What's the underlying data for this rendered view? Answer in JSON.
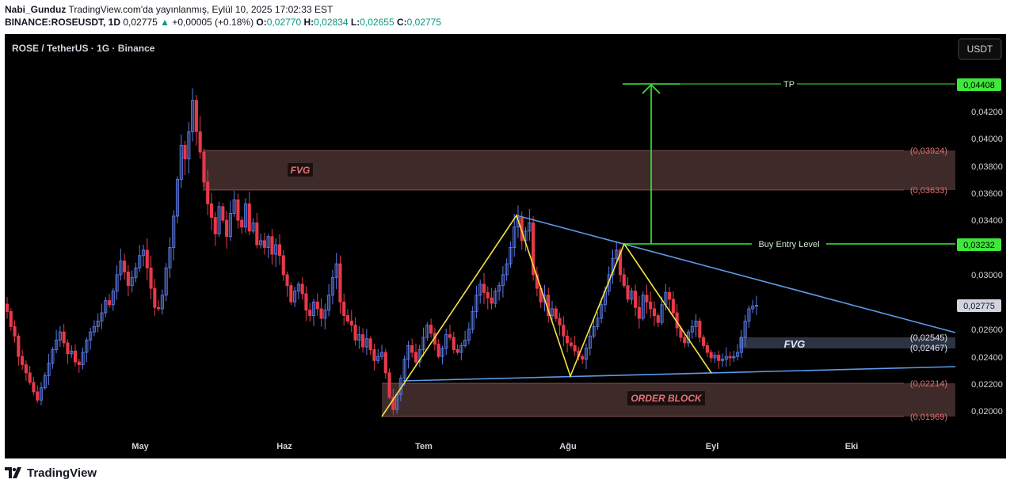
{
  "header": {
    "author": "Nabi_Gunduz",
    "published": "TradingView.com'da yayınlanmış, Eylül 10, 2025 17:02:33 EST",
    "symbol_line": "BINANCE:ROSEUSDT, 1D",
    "last": "0,02775",
    "change": "+0,00005 (+0.18%)",
    "o_label": "O:",
    "o": "0,02770",
    "h_label": "H:",
    "h": "0,02834",
    "l_label": "L:",
    "l": "0,02655",
    "c_label": "C:",
    "c": "0,02775"
  },
  "chart": {
    "legend": "ROSE / TetherUS · 1G · Binance",
    "currency_button": "USDT",
    "price_axis": [
      "0,04200",
      "0,04000",
      "0,03800",
      "0,03600",
      "0,03400",
      "0,03000",
      "0,02600",
      "0,02400",
      "0,02200",
      "0,02000"
    ],
    "time_axis": [
      "May",
      "Haz",
      "Tem",
      "Ağu",
      "Eyl",
      "Eki"
    ],
    "annotations": {
      "tp_label": "TP",
      "tp_price": "0,04408",
      "entry_label": "Buy Entry Level",
      "entry_price": "0,03232",
      "current_price": "0,02775",
      "fvg_top_label": "FVG",
      "fvg_top_high": "(0,03924)",
      "fvg_top_low": "(0,03633)",
      "fvg_low_label": "FVG",
      "fvg_low_high": "(0,02545)",
      "fvg_low_low": "(0,02467)",
      "ob_label": "ORDER BLOCK",
      "ob_high": "(0,02214)",
      "ob_low": "(0,01969)"
    },
    "colors": {
      "up": "#5b7be6",
      "down": "#e8394a",
      "pattern": "#f5e642",
      "trendline": "#5b9be8",
      "tp": "#3ee83a",
      "zone": "#3f2a2a"
    }
  },
  "footer": {
    "brand": "TradingView"
  },
  "chart_data": {
    "type": "candlestick",
    "symbol": "BINANCE:ROSEUSDT",
    "interval": "1D",
    "y_unit": "USDT",
    "ylim": [
      0.0192,
      0.0455
    ],
    "x_ticks": [
      "May",
      "Haz",
      "Tem",
      "Ağu",
      "Eyl",
      "Eki"
    ],
    "last_ohlc": {
      "open": 0.0277,
      "high": 0.02834,
      "low": 0.02655,
      "close": 0.02775
    },
    "closes": [
      0.0273,
      0.0262,
      0.0255,
      0.024,
      0.0234,
      0.0228,
      0.0221,
      0.0214,
      0.0208,
      0.0217,
      0.0226,
      0.0235,
      0.0245,
      0.0252,
      0.0258,
      0.025,
      0.0242,
      0.0244,
      0.0236,
      0.0234,
      0.0243,
      0.0252,
      0.0258,
      0.0262,
      0.0266,
      0.0272,
      0.0281,
      0.0278,
      0.0288,
      0.03,
      0.031,
      0.0302,
      0.0292,
      0.0298,
      0.0305,
      0.0314,
      0.0318,
      0.0305,
      0.029,
      0.0276,
      0.0275,
      0.0285,
      0.0305,
      0.032,
      0.0343,
      0.037,
      0.0395,
      0.0385,
      0.0405,
      0.0428,
      0.0405,
      0.039,
      0.0368,
      0.0352,
      0.0342,
      0.033,
      0.035,
      0.034,
      0.0328,
      0.0345,
      0.0355,
      0.034,
      0.0335,
      0.0352,
      0.0332,
      0.0338,
      0.0322,
      0.0325,
      0.032,
      0.0328,
      0.0315,
      0.0322,
      0.0314,
      0.03,
      0.0292,
      0.028,
      0.0288,
      0.0293,
      0.0286,
      0.0274,
      0.027,
      0.028,
      0.0275,
      0.0268,
      0.0274,
      0.0285,
      0.0298,
      0.0308,
      0.028,
      0.027,
      0.0266,
      0.0263,
      0.0252,
      0.0256,
      0.0247,
      0.0253,
      0.0245,
      0.0237,
      0.024,
      0.0243,
      0.0228,
      0.021,
      0.0201,
      0.0212,
      0.0224,
      0.0238,
      0.0248,
      0.0243,
      0.0236,
      0.0245,
      0.0254,
      0.0263,
      0.0257,
      0.0249,
      0.024,
      0.0246,
      0.0256,
      0.0254,
      0.0245,
      0.0243,
      0.0248,
      0.0252,
      0.026,
      0.0273,
      0.0285,
      0.0293,
      0.0287,
      0.0283,
      0.0279,
      0.0288,
      0.0292,
      0.03,
      0.0308,
      0.032,
      0.0335,
      0.0342,
      0.0325,
      0.0332,
      0.0338,
      0.03,
      0.029,
      0.028,
      0.0285,
      0.027,
      0.0275,
      0.0268,
      0.0263,
      0.0255,
      0.025,
      0.0248,
      0.0244,
      0.024,
      0.0238,
      0.0246,
      0.0255,
      0.0262,
      0.0268,
      0.0278,
      0.0288,
      0.03,
      0.0312,
      0.0318,
      0.03,
      0.0292,
      0.0282,
      0.0288,
      0.0276,
      0.0268,
      0.0285,
      0.028,
      0.0275,
      0.027,
      0.0265,
      0.0278,
      0.0287,
      0.0282,
      0.0272,
      0.0261,
      0.0254,
      0.025,
      0.0258,
      0.0262,
      0.0266,
      0.0254,
      0.0248,
      0.0243,
      0.0239,
      0.0241,
      0.0237,
      0.0238,
      0.024,
      0.0239,
      0.024,
      0.0243,
      0.0254,
      0.0266,
      0.0275,
      0.0277,
      0.02775
    ]
  }
}
